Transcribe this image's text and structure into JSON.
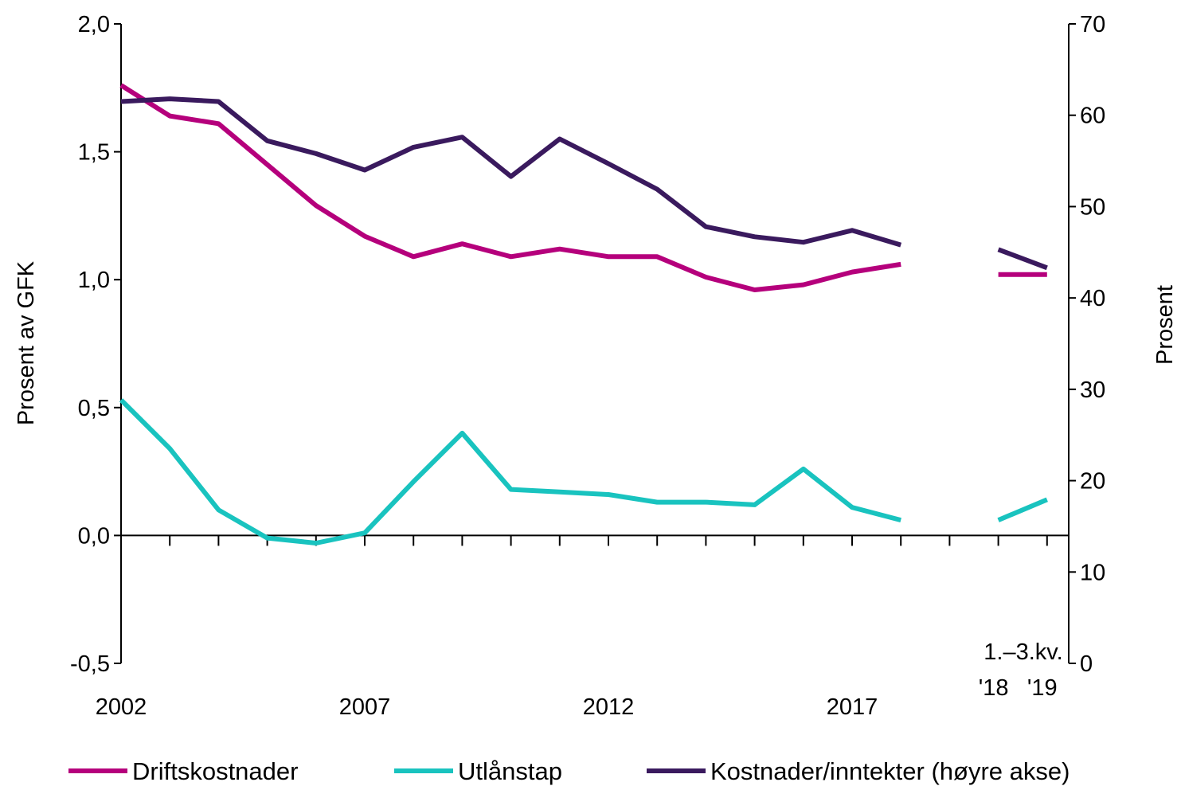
{
  "chart_data": {
    "type": "line",
    "title": "",
    "x": [
      "2002",
      "2003",
      "2004",
      "2005",
      "2006",
      "2007",
      "2008",
      "2009",
      "2010",
      "2011",
      "2012",
      "2013",
      "2014",
      "2015",
      "2016",
      "2017",
      "2018",
      "",
      "1.–3.kv. '18",
      "1.–3.kv. '19"
    ],
    "x_tick_labels": [
      {
        "label": "2002",
        "index": 0
      },
      {
        "label": "2007",
        "index": 5
      },
      {
        "label": "2012",
        "index": 10
      },
      {
        "label": "2017",
        "index": 15
      }
    ],
    "period_label": "1.–3.kv.",
    "period_ticks": [
      {
        "label": "'18",
        "index": 18
      },
      {
        "label": "'19",
        "index": 19
      }
    ],
    "left_axis": {
      "label": "Prosent av GFK",
      "ylim": [
        -0.5,
        2.0
      ],
      "ticks": [
        "-0,5",
        "0,0",
        "0,5",
        "1,0",
        "1,5",
        "2,0"
      ],
      "tick_values": [
        -0.5,
        0.0,
        0.5,
        1.0,
        1.5,
        2.0
      ]
    },
    "right_axis": {
      "label": "Prosent",
      "ylim": [
        0,
        70
      ],
      "ticks": [
        "0",
        "10",
        "20",
        "30",
        "40",
        "50",
        "60",
        "70"
      ],
      "tick_values": [
        0,
        10,
        20,
        30,
        40,
        50,
        60,
        70
      ]
    },
    "series": [
      {
        "name": "Driftskostnader",
        "axis": "left",
        "color": "#b5007c",
        "values": [
          1.76,
          1.64,
          1.61,
          1.45,
          1.29,
          1.17,
          1.09,
          1.14,
          1.09,
          1.12,
          1.09,
          1.09,
          1.01,
          0.96,
          0.98,
          1.03,
          1.06,
          null,
          1.02,
          1.02
        ]
      },
      {
        "name": "Utlånstap",
        "axis": "left",
        "color": "#19c3bf",
        "values": [
          0.53,
          0.34,
          0.1,
          -0.01,
          -0.03,
          0.01,
          0.21,
          0.4,
          0.18,
          0.17,
          0.16,
          0.13,
          0.13,
          0.12,
          0.26,
          0.11,
          0.06,
          null,
          0.06,
          0.14
        ]
      },
      {
        "name": "Kostnader/inntekter (høyre akse)",
        "axis": "right",
        "color": "#3a1a5e",
        "values": [
          61.5,
          61.8,
          61.5,
          57.2,
          55.8,
          54.0,
          56.5,
          57.6,
          53.3,
          57.4,
          54.7,
          51.9,
          47.8,
          46.7,
          46.1,
          47.4,
          45.8,
          null,
          45.3,
          43.3
        ]
      }
    ],
    "legend_position": "bottom",
    "grid": false
  }
}
